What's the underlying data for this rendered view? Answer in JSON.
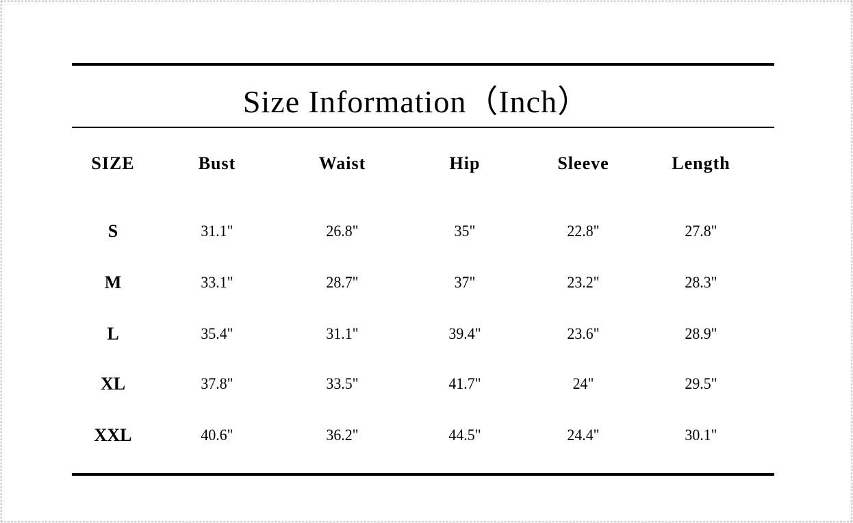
{
  "title": "Size Information（Inch）",
  "headers": [
    "SIZE",
    "Bust",
    "Waist",
    "Hip",
    "Sleeve",
    "Length"
  ],
  "rows": [
    [
      "S",
      "31.1\"",
      "26.8\"",
      "35\"",
      "22.8\"",
      "27.8\""
    ],
    [
      "M",
      "33.1\"",
      "28.7\"",
      "37\"",
      "23.2\"",
      "28.3\""
    ],
    [
      "L",
      "35.4\"",
      "31.1\"",
      "39.4\"",
      "23.6\"",
      "28.9\""
    ],
    [
      "XL",
      "37.8\"",
      "33.5\"",
      "41.7\"",
      "24\"",
      "29.5\""
    ],
    [
      "XXL",
      "40.6\"",
      "36.2\"",
      "44.5\"",
      "24.4\"",
      "30.1\""
    ]
  ]
}
